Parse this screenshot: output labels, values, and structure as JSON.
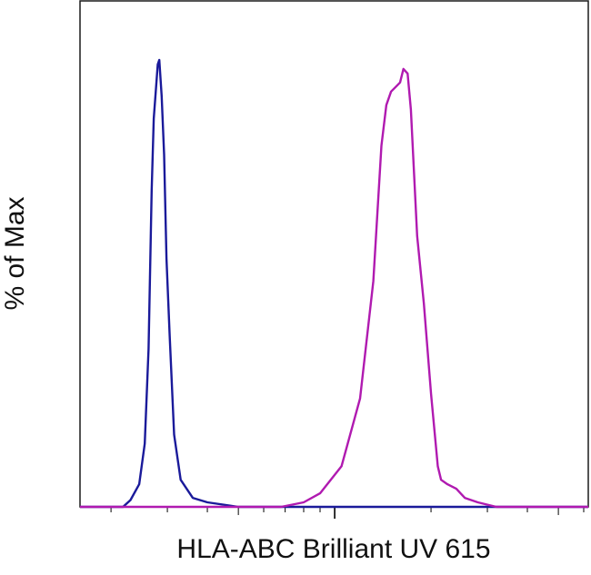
{
  "chart_data": {
    "type": "line",
    "title": "",
    "xlabel": "HLA-ABC Brilliant UV 615",
    "ylabel": "% of Max",
    "x_scale": "log",
    "xlim": [
      1.6,
      62
    ],
    "ylim": [
      0,
      100
    ],
    "grid": false,
    "legend": "none",
    "series": [
      {
        "color": "#1a1a9a",
        "x": [
          1.6,
          2.18,
          2.3,
          2.45,
          2.55,
          2.62,
          2.68,
          2.72,
          2.76,
          2.8,
          2.83,
          2.88,
          2.93,
          2.98,
          3.05,
          3.15,
          3.3,
          3.6,
          4.0,
          5.0,
          62
        ],
        "y": [
          0,
          0,
          1.5,
          5,
          14,
          35,
          70,
          86,
          92,
          98,
          99,
          91,
          78,
          55,
          38,
          16,
          6,
          2,
          1,
          0,
          0
        ]
      },
      {
        "color": "#b01ab0",
        "x": [
          1.6,
          6.8,
          8.0,
          9.0,
          10.5,
          12.0,
          13.2,
          14.0,
          14.5,
          15.0,
          15.5,
          16.0,
          16.4,
          16.9,
          17.3,
          18.1,
          19.0,
          20.0,
          21.0,
          21.5,
          22.5,
          24.0,
          25.5,
          28.0,
          32.0,
          62
        ],
        "y": [
          0,
          0,
          1,
          3,
          9,
          24,
          50,
          80,
          89,
          92,
          93,
          94,
          97,
          96,
          88,
          60,
          45,
          25,
          9,
          6,
          5,
          4,
          2,
          1,
          0,
          0
        ]
      }
    ]
  }
}
